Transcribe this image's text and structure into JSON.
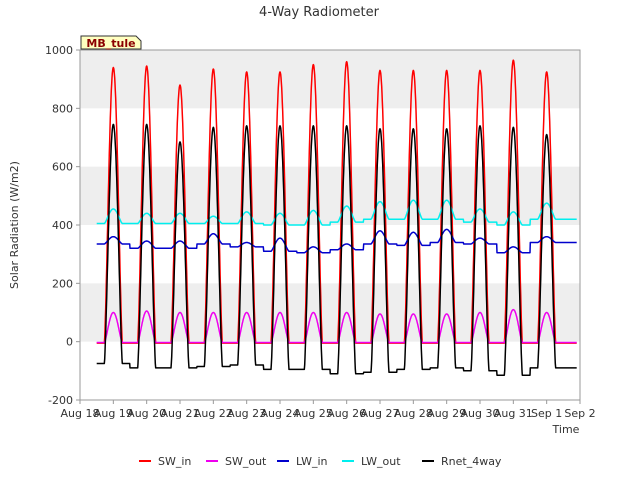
{
  "chart_data": {
    "type": "line",
    "title": "4-Way Radiometer",
    "xlabel": "Time",
    "ylabel": "Solar Radiation (W/m2)",
    "site_label": "MB_tule",
    "ylim": [
      -200,
      1000
    ],
    "xlim": [
      0,
      15
    ],
    "yticks": [
      -200,
      0,
      200,
      400,
      600,
      800,
      1000
    ],
    "xticks": [
      "Aug 18",
      "Aug 19",
      "Aug 20",
      "Aug 21",
      "Aug 22",
      "Aug 23",
      "Aug 24",
      "Aug 25",
      "Aug 26",
      "Aug 27",
      "Aug 28",
      "Aug 29",
      "Aug 30",
      "Aug 31",
      "Sep 1",
      "Sep 2"
    ],
    "grid": "horizontal bands",
    "legend_position": "bottom",
    "data_start": 0.5,
    "data_end": 14.9,
    "series": [
      {
        "name": "SW_in",
        "color": "#ff0000",
        "daily_peak": [
          940,
          945,
          880,
          935,
          925,
          925,
          950,
          960,
          930,
          930,
          930,
          930,
          965,
          925
        ],
        "night": -5
      },
      {
        "name": "SW_out",
        "color": "#ee00ee",
        "daily_peak": [
          100,
          105,
          100,
          100,
          100,
          100,
          100,
          100,
          95,
          95,
          95,
          100,
          110,
          100
        ],
        "night": -3
      },
      {
        "name": "LW_in",
        "color": "#0000cc",
        "daily_peak": [
          360,
          345,
          345,
          370,
          340,
          355,
          325,
          335,
          380,
          375,
          385,
          355,
          325,
          360
        ],
        "night": [
          335,
          320,
          320,
          335,
          325,
          310,
          305,
          315,
          335,
          330,
          340,
          335,
          305,
          340
        ]
      },
      {
        "name": "LW_out",
        "color": "#00eeee",
        "daily_peak": [
          455,
          440,
          440,
          430,
          445,
          440,
          450,
          465,
          480,
          485,
          485,
          455,
          445,
          475
        ],
        "night": [
          405,
          405,
          405,
          405,
          405,
          400,
          400,
          410,
          420,
          420,
          420,
          410,
          400,
          420
        ]
      },
      {
        "name": "Rnet_4way",
        "color": "#000000",
        "daily_peak": [
          745,
          745,
          685,
          735,
          740,
          740,
          740,
          740,
          730,
          730,
          730,
          740,
          735,
          710
        ],
        "night": [
          -75,
          -90,
          -90,
          -85,
          -80,
          -95,
          -95,
          -110,
          -105,
          -95,
          -90,
          -100,
          -115,
          -90
        ]
      }
    ]
  }
}
